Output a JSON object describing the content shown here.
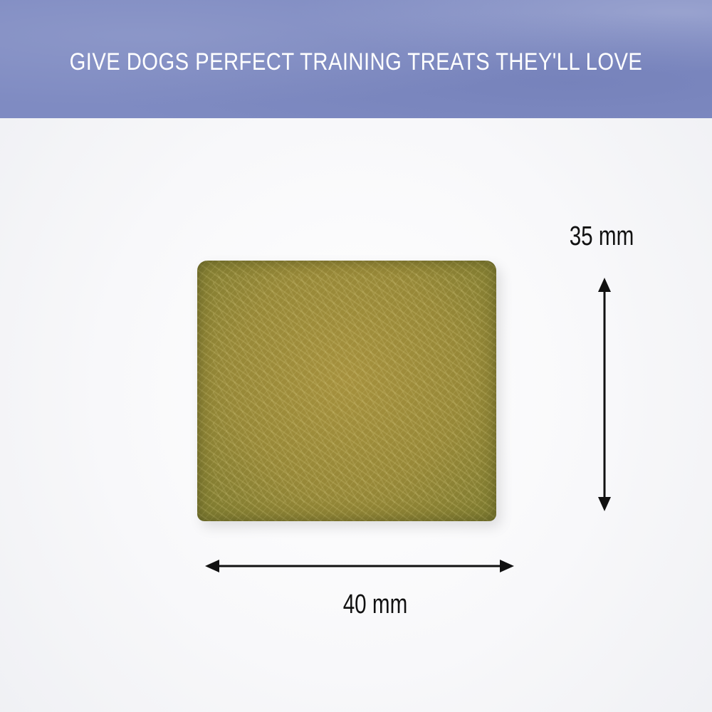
{
  "banner": {
    "headline": "GIVE DOGS PERFECT TRAINING TREATS THEY'LL LOVE",
    "color": "#7f8bc2"
  },
  "dimensions": {
    "height_label": "35 mm",
    "width_label": "40 mm"
  },
  "product": {
    "name": "training-treat",
    "color": "#978838"
  }
}
